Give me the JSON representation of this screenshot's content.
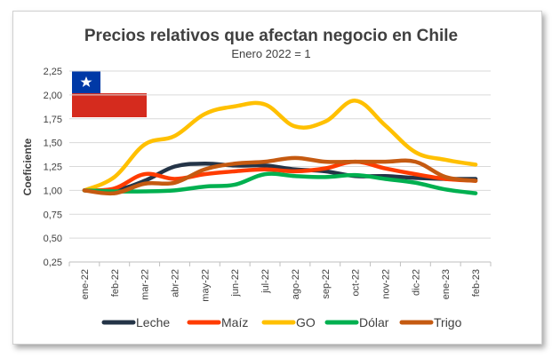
{
  "chart_data": {
    "type": "line",
    "title": "Precios relativos que afectan negocio en Chile",
    "subtitle": "Enero 2022 = 1",
    "xlabel": "",
    "ylabel": "Coeficiente",
    "ylim": [
      0.25,
      2.25
    ],
    "yticks": [
      "0,25",
      "0,50",
      "0,75",
      "1,00",
      "1,25",
      "1,50",
      "1,75",
      "2,00",
      "2,25"
    ],
    "yticks_values": [
      0.25,
      0.5,
      0.75,
      1.0,
      1.25,
      1.5,
      1.75,
      2.0,
      2.25
    ],
    "categories": [
      "ene-22",
      "feb-22",
      "mar-22",
      "abr-22",
      "may-22",
      "jun-22",
      "jul-22",
      "ago-22",
      "sep-22",
      "oct-22",
      "nov-22",
      "dic-22",
      "ene-23",
      "feb-23"
    ],
    "grid": true,
    "legend_position": "bottom",
    "series": [
      {
        "name": "Leche",
        "color": "#243447",
        "values": [
          1.0,
          1.0,
          1.1,
          1.25,
          1.28,
          1.26,
          1.26,
          1.22,
          1.2,
          1.15,
          1.15,
          1.13,
          1.12,
          1.12
        ]
      },
      {
        "name": "Maíz",
        "color": "#ff3c00",
        "values": [
          1.0,
          1.02,
          1.17,
          1.12,
          1.17,
          1.2,
          1.22,
          1.2,
          1.23,
          1.3,
          1.23,
          1.17,
          1.12,
          1.1
        ]
      },
      {
        "name": "GO",
        "color": "#ffc000",
        "values": [
          1.0,
          1.14,
          1.48,
          1.57,
          1.8,
          1.88,
          1.9,
          1.67,
          1.72,
          1.94,
          1.68,
          1.4,
          1.32,
          1.27
        ]
      },
      {
        "name": "Dólar",
        "color": "#00b050",
        "values": [
          1.0,
          0.99,
          0.99,
          1.0,
          1.04,
          1.06,
          1.17,
          1.15,
          1.14,
          1.16,
          1.12,
          1.08,
          1.01,
          0.97
        ]
      },
      {
        "name": "Trigo",
        "color": "#c55a11",
        "values": [
          1.0,
          0.97,
          1.07,
          1.08,
          1.22,
          1.28,
          1.3,
          1.34,
          1.3,
          1.3,
          1.3,
          1.3,
          1.14,
          1.1
        ]
      }
    ]
  }
}
